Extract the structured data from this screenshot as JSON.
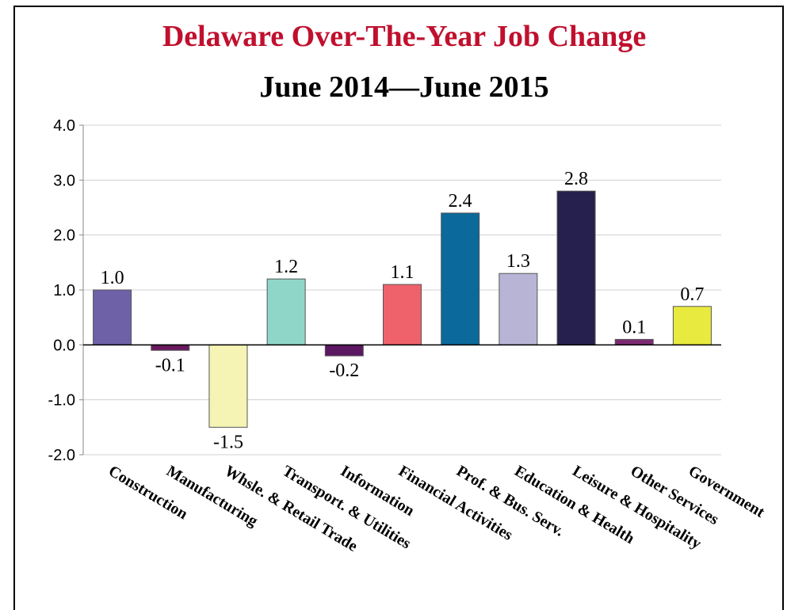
{
  "chart_data": {
    "type": "bar",
    "title": "Delaware Over-The-Year Job Change",
    "subtitle": "June 2014—June 2015",
    "categories": [
      "Construction",
      "Manufacturing",
      "Whsle. & Retail Trade",
      "Transport. & Utilities",
      "Information",
      "Financial Activities",
      "Prof. & Bus. Serv.",
      "Education & Health",
      "Leisure & Hospitality",
      "Other Services",
      "Government"
    ],
    "values": [
      1.0,
      -0.1,
      -1.5,
      1.2,
      -0.2,
      1.1,
      2.4,
      1.3,
      2.8,
      0.1,
      0.7
    ],
    "value_labels": [
      "1.0",
      "-0.1",
      "-1.5",
      "1.2",
      "-0.2",
      "1.1",
      "2.4",
      "1.3",
      "2.8",
      "0.1",
      "0.7"
    ],
    "colors": [
      "#6f61a8",
      "#6a1a5e",
      "#f6f4b4",
      "#8fd6c8",
      "#5b1762",
      "#ef626b",
      "#0b6a9b",
      "#b8b4d5",
      "#26204f",
      "#7b2a72",
      "#e9ea3f"
    ],
    "ylim": [
      -2,
      4
    ],
    "yticks": [
      {
        "value": -2,
        "label": "-2.0"
      },
      {
        "value": -1,
        "label": "-1.0"
      },
      {
        "value": 0,
        "label": "0.0"
      },
      {
        "value": 1,
        "label": "1.0"
      },
      {
        "value": 2,
        "label": "2.0"
      },
      {
        "value": 3,
        "label": "3.0"
      },
      {
        "value": 4,
        "label": "4.0"
      }
    ],
    "grid": true
  }
}
